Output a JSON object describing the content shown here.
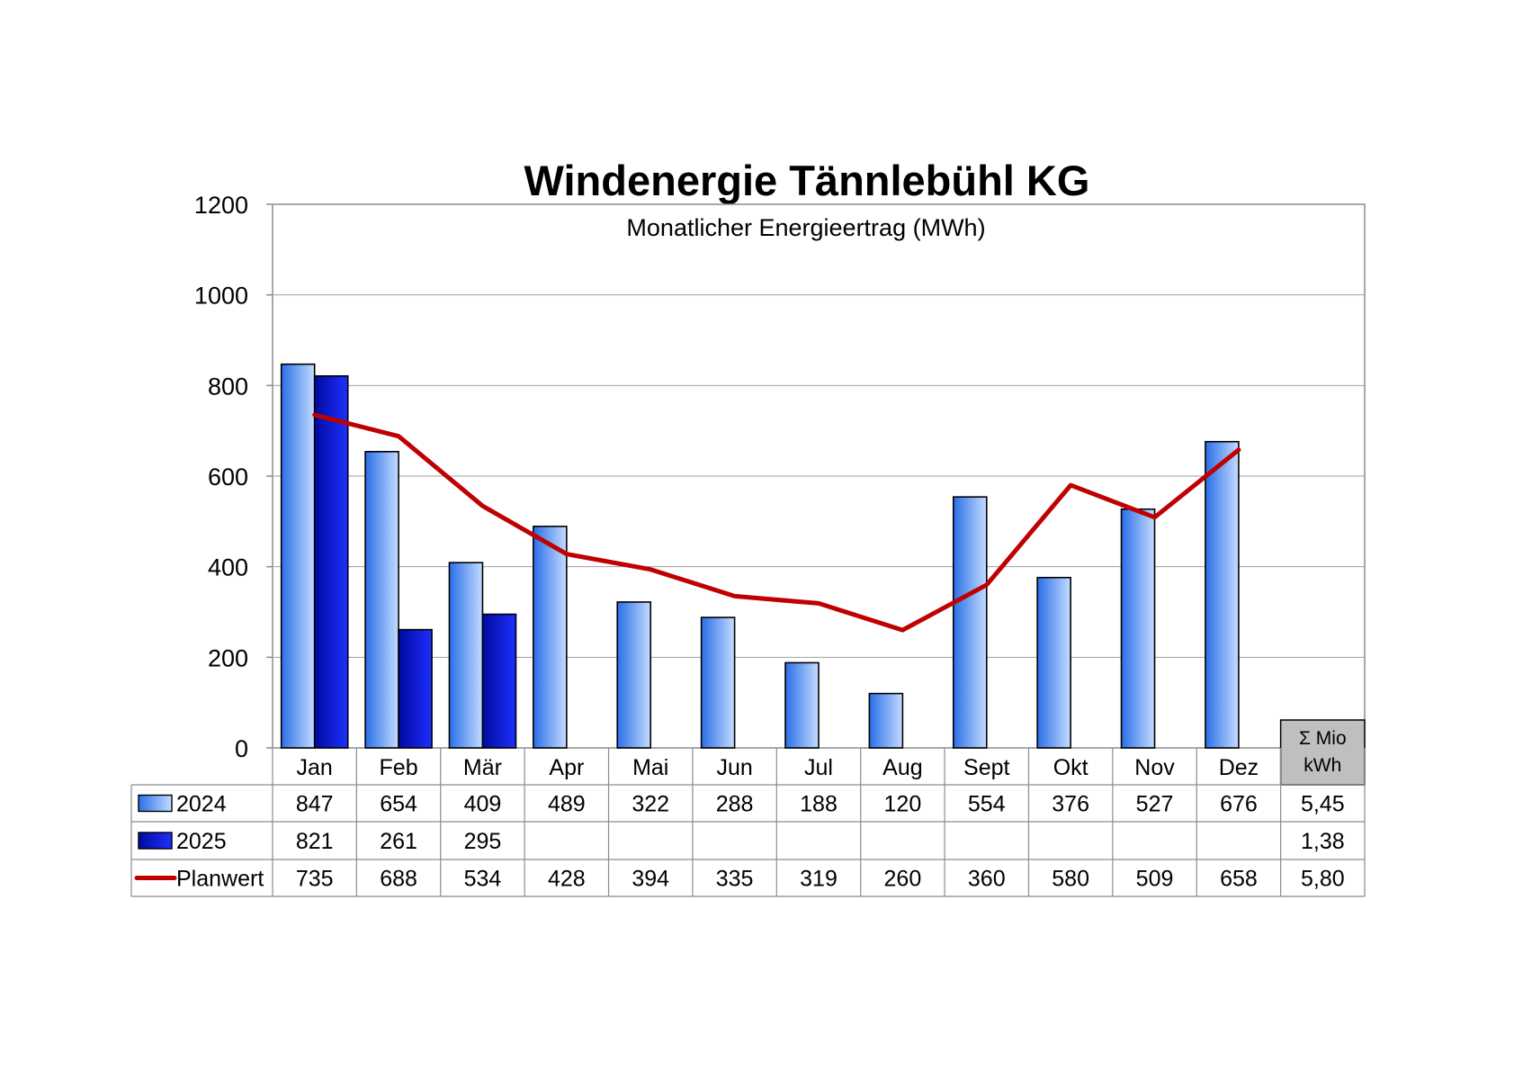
{
  "chart_data": {
    "type": "bar",
    "title": "Windenergie Tännlebühl KG",
    "subtitle": "Monatlicher Energieertrag (MWh)",
    "categories": [
      "Jan",
      "Feb",
      "Mär",
      "Apr",
      "Mai",
      "Jun",
      "Jul",
      "Aug",
      "Sept",
      "Okt",
      "Nov",
      "Dez"
    ],
    "ylim": [
      0,
      1200
    ],
    "yticks": [
      0,
      200,
      400,
      600,
      800,
      1000,
      1200
    ],
    "grid": true,
    "legend_placement": "data table below chart",
    "series": [
      {
        "name": "2024",
        "kind": "bar",
        "color_light": "#b8d6ff",
        "color_dark": "#2a6fe8",
        "values": [
          847,
          654,
          409,
          489,
          322,
          288,
          188,
          120,
          554,
          376,
          527,
          676
        ],
        "labels": [
          "847",
          "654",
          "409",
          "489",
          "322",
          "288",
          "188",
          "120",
          "554",
          "376",
          "527",
          "676"
        ],
        "total": "5,45"
      },
      {
        "name": "2025",
        "kind": "bar",
        "color_light": "#1a2cff",
        "color_dark": "#000a9e",
        "values": [
          821,
          261,
          295,
          null,
          null,
          null,
          null,
          null,
          null,
          null,
          null,
          null
        ],
        "labels": [
          "821",
          "261",
          "295",
          "",
          "",
          "",
          "",
          "",
          "",
          "",
          "",
          ""
        ],
        "total": "1,38"
      },
      {
        "name": "Planwert",
        "kind": "line",
        "color": "#c00000",
        "values": [
          735,
          688,
          534,
          428,
          394,
          335,
          319,
          260,
          360,
          580,
          509,
          658
        ],
        "labels": [
          "735",
          "688",
          "534",
          "428",
          "394",
          "335",
          "319",
          "260",
          "360",
          "580",
          "509",
          "658"
        ],
        "total": "5,80"
      }
    ],
    "sum_header": [
      "Σ Mio",
      "kWh"
    ]
  }
}
